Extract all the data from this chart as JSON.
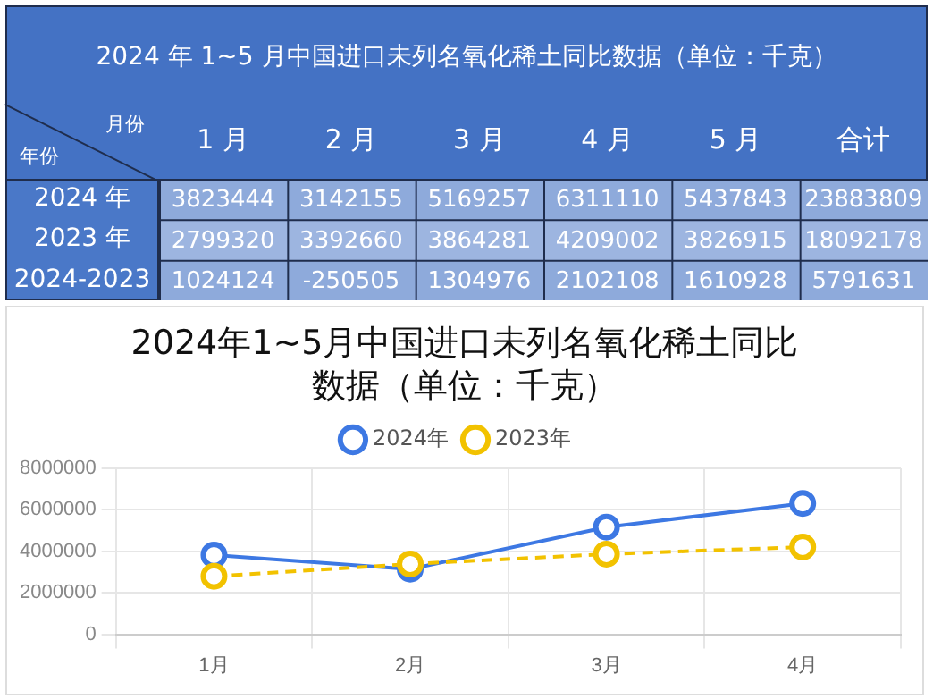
{
  "chart_data": [
    {
      "type": "heatmap",
      "title": "2024 年 1~5 月中国进口未列名氧化稀土同比数据（单位：千克）",
      "xlabel": "月份",
      "ylabel": "年份",
      "categories": [
        "1 月",
        "2 月",
        "3 月",
        "4 月",
        "5 月",
        "合计"
      ],
      "y_categories": [
        "2024 年",
        "2023 年",
        "2024-2023"
      ],
      "cells": [
        [
          3823444,
          3142155,
          5169257,
          6311110,
          5437843,
          23883809
        ],
        [
          2799320,
          3392660,
          3864281,
          4209002,
          3826915,
          18092178
        ],
        [
          1024124,
          -250505,
          1304976,
          2102108,
          1610928,
          5791631
        ]
      ],
      "data_labels": true
    },
    {
      "type": "line",
      "title": "2024年1~5月中国进口未列名氧化稀土同比数据（单位：千克）",
      "categories": [
        "1月",
        "2月",
        "3月",
        "4月"
      ],
      "series": [
        {
          "name": "2024年",
          "color": "#3d78e3",
          "line_style": "solid",
          "values": [
            3823444,
            3142155,
            5169257,
            6311110
          ]
        },
        {
          "name": "2023年",
          "color": "#f2c200",
          "line_style": "dashed",
          "values": [
            2799320,
            3392660,
            3864281,
            4209002
          ]
        }
      ],
      "ylim": [
        0,
        8000000
      ],
      "yticks": [
        0,
        2000000,
        4000000,
        6000000,
        8000000
      ],
      "grid": true,
      "legend": "top",
      "marker": "circle"
    }
  ]
}
